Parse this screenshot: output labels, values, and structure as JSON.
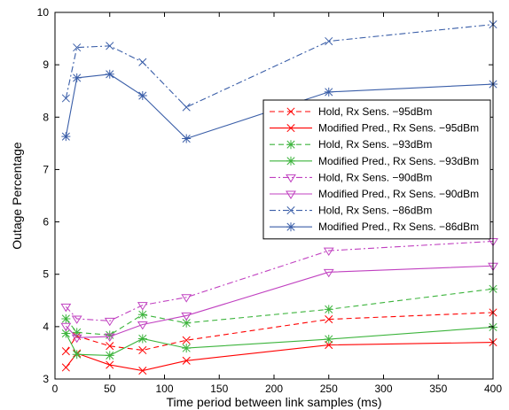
{
  "chart_data": {
    "type": "line",
    "title": "",
    "xlabel": "Time period between link samples (ms)",
    "ylabel": "Outage Percentage",
    "xlim": [
      0,
      400
    ],
    "ylim": [
      3,
      10
    ],
    "xticks": [
      0,
      50,
      100,
      150,
      200,
      250,
      300,
      350,
      400
    ],
    "yticks": [
      3,
      4,
      5,
      6,
      7,
      8,
      9,
      10
    ],
    "grid": false,
    "legend_position": "center-right",
    "x": [
      10,
      20,
      50,
      80,
      120,
      250,
      400
    ],
    "series": [
      {
        "name": "Hold, Rx Sens. −95dBm",
        "color": "#ff0000",
        "dash": "dashed",
        "marker": "x",
        "values": [
          3.53,
          3.82,
          3.63,
          3.55,
          3.74,
          4.14,
          4.27
        ]
      },
      {
        "name": "Modified Pred., Rx Sens. −95dBm",
        "color": "#ff0000",
        "dash": "solid",
        "marker": "x",
        "values": [
          3.22,
          3.49,
          3.27,
          3.16,
          3.35,
          3.65,
          3.7
        ]
      },
      {
        "name": "Hold, Rx Sens. −93dBm",
        "color": "#3cb43c",
        "dash": "dashed",
        "marker": "star",
        "values": [
          4.15,
          3.89,
          3.84,
          4.23,
          4.07,
          4.33,
          4.72
        ]
      },
      {
        "name": "Modified Pred., Rx Sens. −93dBm",
        "color": "#3cb43c",
        "dash": "solid",
        "marker": "star",
        "values": [
          3.87,
          3.47,
          3.45,
          3.77,
          3.59,
          3.76,
          3.99
        ]
      },
      {
        "name": "Hold, Rx Sens. −90dBm",
        "color": "#c040c0",
        "dash": "dashdot",
        "marker": "triangle-down",
        "values": [
          4.38,
          4.15,
          4.11,
          4.41,
          4.56,
          5.45,
          5.63
        ]
      },
      {
        "name": "Modified Pred., Rx Sens. −90dBm",
        "color": "#c040c0",
        "dash": "solid",
        "marker": "triangle-down",
        "values": [
          4.01,
          3.79,
          3.81,
          4.04,
          4.21,
          5.04,
          5.16
        ]
      },
      {
        "name": "Hold, Rx Sens. −86dBm",
        "color": "#3a5ea8",
        "dash": "dashdot",
        "marker": "x",
        "values": [
          8.36,
          9.33,
          9.36,
          9.05,
          8.19,
          9.45,
          9.77
        ]
      },
      {
        "name": "Modified Pred., Rx Sens. −86dBm",
        "color": "#3a5ea8",
        "dash": "solid",
        "marker": "star",
        "values": [
          7.63,
          8.75,
          8.82,
          8.41,
          7.59,
          8.48,
          8.63
        ]
      }
    ]
  }
}
